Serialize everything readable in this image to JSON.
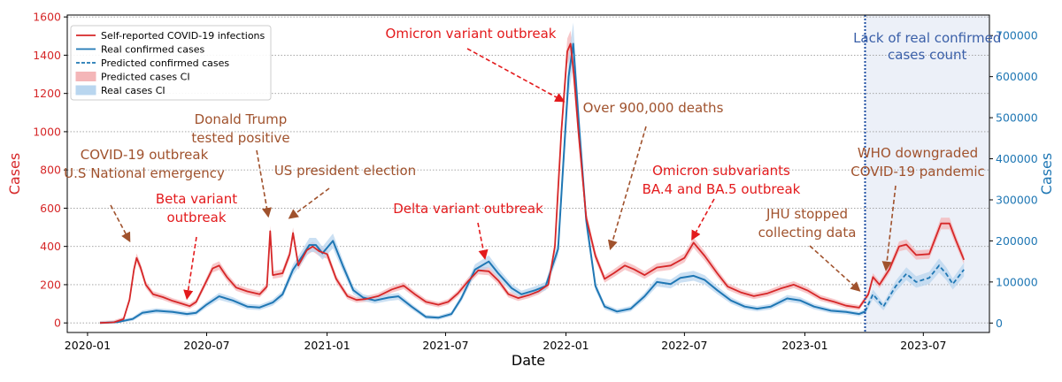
{
  "chart_data": {
    "type": "line",
    "xlabel": "Date",
    "ylabel_left": "Cases",
    "ylabel_right": "Cases",
    "xlim": [
      "2019-12-01",
      "2023-10-10"
    ],
    "ylim_left": [
      -50,
      1610
    ],
    "ylim_right": [
      -23000,
      750000
    ],
    "x_ticks": [
      "2020-01",
      "2020-07",
      "2021-01",
      "2021-07",
      "2022-01",
      "2022-07",
      "2023-01",
      "2023-07"
    ],
    "y_ticks_left": [
      "0",
      "200",
      "400",
      "600",
      "800",
      "1000",
      "1200",
      "1400",
      "1600"
    ],
    "y_ticks_right": [
      "0",
      "100000",
      "200000",
      "300000",
      "400000",
      "500000",
      "600000",
      "700000"
    ],
    "grid": "horizontal dotted",
    "legend_position": "top-left",
    "colors": {
      "self_reported": "#d62728",
      "real": "#1f77b4",
      "annotation_red": "#e31a1c",
      "annotation_brown": "#a0522d",
      "shade": "#ecf0f8",
      "divider": "#1f4fa3",
      "shade_text": "#3a5fa8"
    },
    "cutoff_date": "2023-04-03",
    "shade_label": [
      "Lack of real confirmed",
      "cases count"
    ],
    "series": [
      {
        "name": "Self-reported COVID-19 infections",
        "axis": "left",
        "points": [
          [
            "2020-01-20",
            0
          ],
          [
            "2020-02-10",
            3
          ],
          [
            "2020-02-25",
            20
          ],
          [
            "2020-03-05",
            120
          ],
          [
            "2020-03-12",
            280
          ],
          [
            "2020-03-16",
            340
          ],
          [
            "2020-03-22",
            290
          ],
          [
            "2020-03-30",
            200
          ],
          [
            "2020-04-10",
            150
          ],
          [
            "2020-04-25",
            135
          ],
          [
            "2020-05-10",
            115
          ],
          [
            "2020-05-25",
            100
          ],
          [
            "2020-06-05",
            88
          ],
          [
            "2020-06-15",
            110
          ],
          [
            "2020-06-28",
            200
          ],
          [
            "2020-07-10",
            285
          ],
          [
            "2020-07-20",
            300
          ],
          [
            "2020-08-01",
            240
          ],
          [
            "2020-08-15",
            185
          ],
          [
            "2020-09-01",
            165
          ],
          [
            "2020-09-20",
            150
          ],
          [
            "2020-10-01",
            190
          ],
          [
            "2020-10-06",
            480
          ],
          [
            "2020-10-10",
            250
          ],
          [
            "2020-10-25",
            260
          ],
          [
            "2020-11-05",
            360
          ],
          [
            "2020-11-10",
            470
          ],
          [
            "2020-11-18",
            300
          ],
          [
            "2020-12-01",
            380
          ],
          [
            "2020-12-10",
            400
          ],
          [
            "2020-12-20",
            375
          ],
          [
            "2021-01-01",
            360
          ],
          [
            "2021-01-15",
            230
          ],
          [
            "2021-02-01",
            140
          ],
          [
            "2021-02-15",
            120
          ],
          [
            "2021-03-01",
            125
          ],
          [
            "2021-03-20",
            140
          ],
          [
            "2021-04-10",
            175
          ],
          [
            "2021-04-28",
            195
          ],
          [
            "2021-05-15",
            150
          ],
          [
            "2021-06-01",
            110
          ],
          [
            "2021-06-20",
            95
          ],
          [
            "2021-07-05",
            110
          ],
          [
            "2021-07-20",
            155
          ],
          [
            "2021-08-05",
            220
          ],
          [
            "2021-08-20",
            275
          ],
          [
            "2021-09-05",
            270
          ],
          [
            "2021-09-20",
            220
          ],
          [
            "2021-10-05",
            150
          ],
          [
            "2021-10-20",
            130
          ],
          [
            "2021-11-05",
            145
          ],
          [
            "2021-11-20",
            165
          ],
          [
            "2021-12-05",
            200
          ],
          [
            "2021-12-15",
            400
          ],
          [
            "2021-12-25",
            1000
          ],
          [
            "2022-01-03",
            1420
          ],
          [
            "2022-01-08",
            1460
          ],
          [
            "2022-01-13",
            1300
          ],
          [
            "2022-01-20",
            1000
          ],
          [
            "2022-02-01",
            550
          ],
          [
            "2022-02-15",
            350
          ],
          [
            "2022-03-01",
            230
          ],
          [
            "2022-03-15",
            260
          ],
          [
            "2022-04-01",
            300
          ],
          [
            "2022-04-15",
            280
          ],
          [
            "2022-05-01",
            250
          ],
          [
            "2022-05-20",
            290
          ],
          [
            "2022-06-10",
            300
          ],
          [
            "2022-07-01",
            340
          ],
          [
            "2022-07-15",
            420
          ],
          [
            "2022-08-01",
            350
          ],
          [
            "2022-08-20",
            260
          ],
          [
            "2022-09-05",
            190
          ],
          [
            "2022-09-25",
            160
          ],
          [
            "2022-10-15",
            140
          ],
          [
            "2022-11-05",
            155
          ],
          [
            "2022-11-25",
            180
          ],
          [
            "2022-12-15",
            200
          ],
          [
            "2023-01-05",
            170
          ],
          [
            "2023-01-25",
            130
          ],
          [
            "2023-02-15",
            110
          ],
          [
            "2023-03-05",
            90
          ],
          [
            "2023-03-25",
            80
          ],
          [
            "2023-04-08",
            150
          ],
          [
            "2023-04-15",
            240
          ],
          [
            "2023-04-25",
            200
          ],
          [
            "2023-05-10",
            280
          ],
          [
            "2023-05-25",
            400
          ],
          [
            "2023-06-05",
            410
          ],
          [
            "2023-06-20",
            355
          ],
          [
            "2023-07-10",
            360
          ],
          [
            "2023-07-28",
            520
          ],
          [
            "2023-08-10",
            520
          ],
          [
            "2023-08-20",
            430
          ],
          [
            "2023-09-01",
            330
          ]
        ]
      },
      {
        "name": "Real confirmed cases",
        "axis": "right",
        "points": [
          [
            "2020-01-20",
            0
          ],
          [
            "2020-02-15",
            2000
          ],
          [
            "2020-03-10",
            10000
          ],
          [
            "2020-03-25",
            25000
          ],
          [
            "2020-04-15",
            30000
          ],
          [
            "2020-05-10",
            27000
          ],
          [
            "2020-06-01",
            22000
          ],
          [
            "2020-06-15",
            25000
          ],
          [
            "2020-07-01",
            45000
          ],
          [
            "2020-07-20",
            65000
          ],
          [
            "2020-08-10",
            55000
          ],
          [
            "2020-09-01",
            40000
          ],
          [
            "2020-09-20",
            38000
          ],
          [
            "2020-10-10",
            50000
          ],
          [
            "2020-10-25",
            70000
          ],
          [
            "2020-11-10",
            130000
          ],
          [
            "2020-11-25",
            165000
          ],
          [
            "2020-12-05",
            190000
          ],
          [
            "2020-12-15",
            190000
          ],
          [
            "2020-12-25",
            170000
          ],
          [
            "2021-01-10",
            200000
          ],
          [
            "2021-01-25",
            140000
          ],
          [
            "2021-02-10",
            80000
          ],
          [
            "2021-02-25",
            62000
          ],
          [
            "2021-03-15",
            55000
          ],
          [
            "2021-04-05",
            62000
          ],
          [
            "2021-04-20",
            65000
          ],
          [
            "2021-05-10",
            40000
          ],
          [
            "2021-06-01",
            15000
          ],
          [
            "2021-06-20",
            13000
          ],
          [
            "2021-07-10",
            22000
          ],
          [
            "2021-07-25",
            60000
          ],
          [
            "2021-08-15",
            130000
          ],
          [
            "2021-09-05",
            150000
          ],
          [
            "2021-09-20",
            120000
          ],
          [
            "2021-10-10",
            85000
          ],
          [
            "2021-10-25",
            70000
          ],
          [
            "2021-11-15",
            80000
          ],
          [
            "2021-12-01",
            90000
          ],
          [
            "2021-12-20",
            180000
          ],
          [
            "2022-01-05",
            600000
          ],
          [
            "2022-01-12",
            680000
          ],
          [
            "2022-01-20",
            500000
          ],
          [
            "2022-02-01",
            250000
          ],
          [
            "2022-02-15",
            90000
          ],
          [
            "2022-03-01",
            40000
          ],
          [
            "2022-03-20",
            28000
          ],
          [
            "2022-04-10",
            35000
          ],
          [
            "2022-05-01",
            65000
          ],
          [
            "2022-05-20",
            100000
          ],
          [
            "2022-06-10",
            95000
          ],
          [
            "2022-06-25",
            110000
          ],
          [
            "2022-07-15",
            115000
          ],
          [
            "2022-08-01",
            105000
          ],
          [
            "2022-08-20",
            80000
          ],
          [
            "2022-09-10",
            55000
          ],
          [
            "2022-10-01",
            40000
          ],
          [
            "2022-10-20",
            35000
          ],
          [
            "2022-11-10",
            40000
          ],
          [
            "2022-12-05",
            60000
          ],
          [
            "2022-12-25",
            55000
          ],
          [
            "2023-01-15",
            40000
          ],
          [
            "2023-02-10",
            30000
          ],
          [
            "2023-03-05",
            27000
          ],
          [
            "2023-03-25",
            22000
          ],
          [
            "2023-04-03",
            28000
          ]
        ]
      },
      {
        "name": "Predicted confirmed cases",
        "axis": "right",
        "style": "dashed",
        "points": [
          [
            "2023-04-03",
            28000
          ],
          [
            "2023-04-15",
            70000
          ],
          [
            "2023-05-01",
            40000
          ],
          [
            "2023-05-20",
            90000
          ],
          [
            "2023-06-05",
            120000
          ],
          [
            "2023-06-20",
            100000
          ],
          [
            "2023-07-10",
            110000
          ],
          [
            "2023-07-25",
            140000
          ],
          [
            "2023-08-05",
            120000
          ],
          [
            "2023-08-15",
            95000
          ],
          [
            "2023-09-01",
            130000
          ]
        ]
      }
    ],
    "bands": [
      {
        "name": "Predicted cases CI",
        "color": "#f4b6b8"
      },
      {
        "name": "Real cases CI",
        "color": "#b9d6ef"
      }
    ],
    "annotations": [
      {
        "lines": [
          "COVID-19 outbreak",
          "U.S National emergency"
        ],
        "color": "brown",
        "target": [
          "2020-03-05",
          430
        ]
      },
      {
        "lines": [
          "Beta variant",
          "outbreak"
        ],
        "color": "red",
        "target": [
          "2020-06-01",
          130
        ]
      },
      {
        "lines": [
          "Donald Trump",
          "tested positive"
        ],
        "color": "brown",
        "target": [
          "2020-10-03",
          560
        ]
      },
      {
        "lines": [
          "US president election"
        ],
        "color": "brown",
        "target": [
          "2020-11-05",
          550
        ]
      },
      {
        "lines": [
          "Delta variant outbreak"
        ],
        "color": "red",
        "target": [
          "2021-08-30",
          340
        ]
      },
      {
        "lines": [
          "Omicron variant outbreak"
        ],
        "color": "red",
        "target": [
          "2021-12-28",
          1160
        ]
      },
      {
        "lines": [
          "Over 900,000 deaths"
        ],
        "color": "brown",
        "target": [
          "2022-03-10",
          390
        ]
      },
      {
        "lines": [
          "Omicron subvariants",
          "BA.4 and BA.5 outbreak"
        ],
        "color": "red",
        "target": [
          "2022-07-13",
          440
        ]
      },
      {
        "lines": [
          "JHU stopped",
          "collecting data"
        ],
        "color": "brown",
        "target": [
          "2023-03-25",
          170
        ]
      },
      {
        "lines": [
          "WHO downgraded",
          "COVID-19 pandemic"
        ],
        "color": "brown",
        "target": [
          "2023-05-05",
          280
        ]
      }
    ]
  }
}
